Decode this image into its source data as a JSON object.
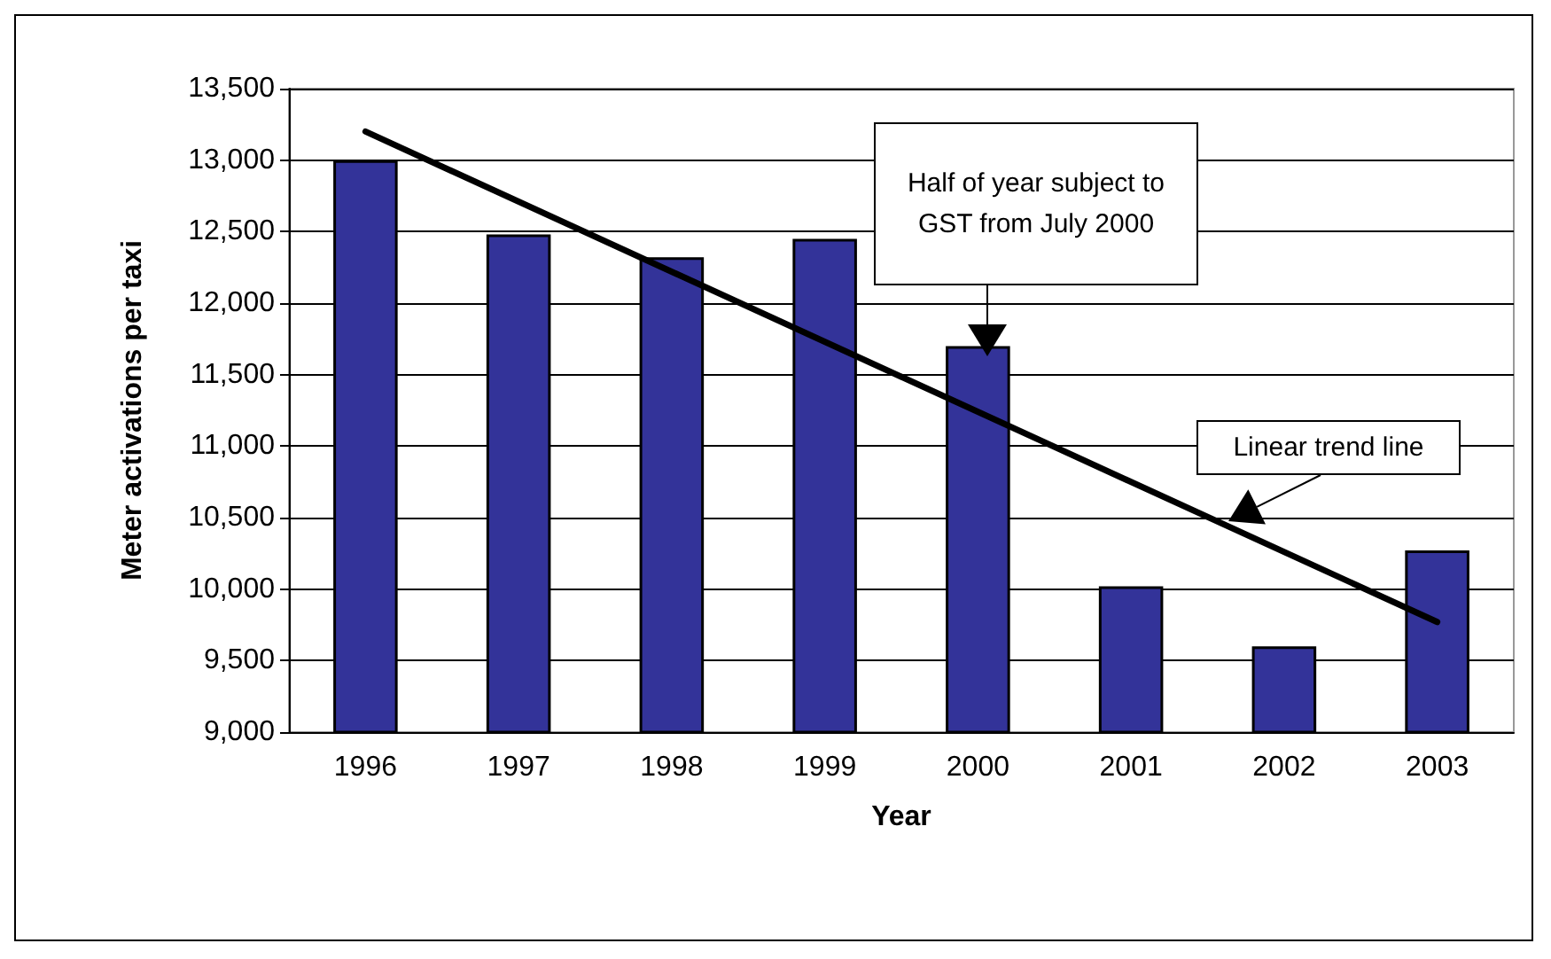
{
  "chart_data": {
    "type": "bar",
    "xlabel": "Year",
    "ylabel": "Meter activations per taxi",
    "categories": [
      "1996",
      "1997",
      "1998",
      "1999",
      "2000",
      "2001",
      "2002",
      "2003"
    ],
    "series": [
      {
        "color": "#333399",
        "values": [
          13000,
          12480,
          12320,
          12450,
          11700,
          10020,
          9600,
          10270
        ]
      },
      {
        "type": "line",
        "color": "#000000",
        "values": [
          13200,
          null,
          null,
          null,
          null,
          null,
          null,
          9770
        ]
      }
    ],
    "ylim": [
      9000,
      13500
    ],
    "yticks": [
      {
        "value": 9000,
        "label": "9,000"
      },
      {
        "value": 9500,
        "label": "9,500"
      },
      {
        "value": 10000,
        "label": "10,000"
      },
      {
        "value": 10500,
        "label": "10,500"
      },
      {
        "value": 11000,
        "label": "11,000"
      },
      {
        "value": 11500,
        "label": "11,500"
      },
      {
        "value": 12000,
        "label": "12,000"
      },
      {
        "value": 12500,
        "label": "12,500"
      },
      {
        "value": 13000,
        "label": "13,000"
      },
      {
        "value": 13500,
        "label": "13,500"
      }
    ],
    "grid": "y",
    "marker": "none",
    "line_style": "solid",
    "annotations": [
      "Half of year subject to GST from July 2000",
      "Linear trend line"
    ]
  }
}
